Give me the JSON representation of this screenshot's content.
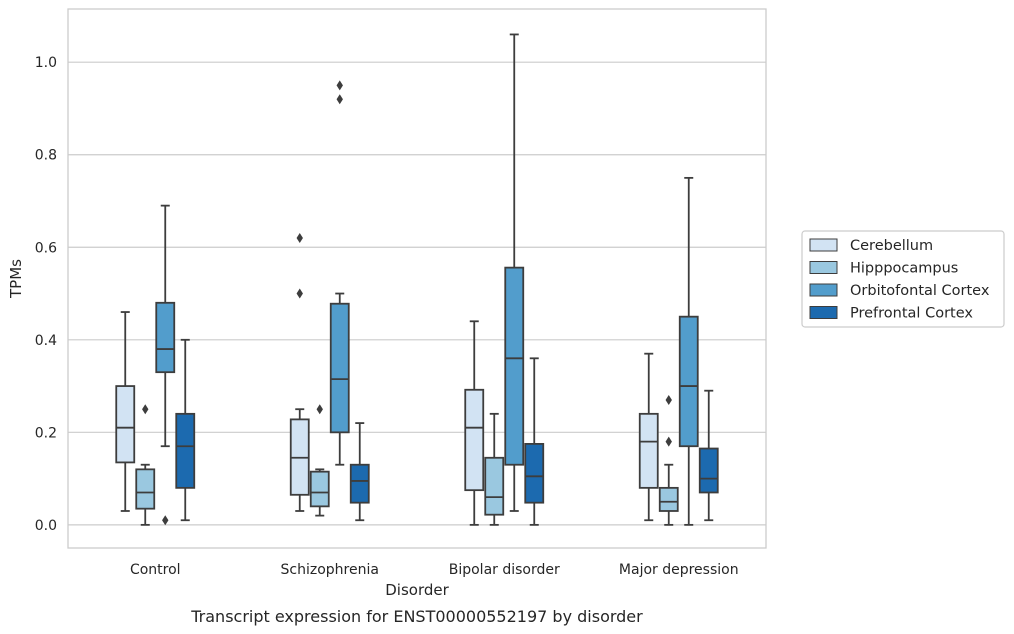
{
  "chart_data": {
    "type": "boxplot",
    "xlabel": "Disorder",
    "ylabel": "TPMs",
    "caption": "Transcript expression for ENST00000552197 by disorder",
    "ylim": [
      -0.05,
      1.115
    ],
    "yticks": [
      0.0,
      0.2,
      0.4,
      0.6,
      0.8,
      1.0
    ],
    "ytick_labels": [
      "0.0",
      "0.2",
      "0.4",
      "0.6",
      "0.8",
      "1.0"
    ],
    "grid": true,
    "legend_position": "right",
    "categories": [
      "Control",
      "Schizophrenia",
      "Bipolar disorder",
      "Major depression"
    ],
    "series": [
      {
        "name": "Cerebellum",
        "color": "#d2e3f3",
        "boxes": [
          {
            "whislo": 0.03,
            "q1": 0.135,
            "med": 0.21,
            "q3": 0.3,
            "whishi": 0.46,
            "fliers": []
          },
          {
            "whislo": 0.03,
            "q1": 0.065,
            "med": 0.145,
            "q3": 0.228,
            "whishi": 0.25,
            "fliers": [
              0.5,
              0.62
            ]
          },
          {
            "whislo": 0.0,
            "q1": 0.075,
            "med": 0.21,
            "q3": 0.292,
            "whishi": 0.44,
            "fliers": []
          },
          {
            "whislo": 0.01,
            "q1": 0.08,
            "med": 0.18,
            "q3": 0.24,
            "whishi": 0.37,
            "fliers": []
          }
        ]
      },
      {
        "name": "Hipppocampus",
        "color": "#9ac8e0",
        "boxes": [
          {
            "whislo": 0.0,
            "q1": 0.035,
            "med": 0.07,
            "q3": 0.12,
            "whishi": 0.13,
            "fliers": [
              0.25
            ]
          },
          {
            "whislo": 0.02,
            "q1": 0.04,
            "med": 0.07,
            "q3": 0.115,
            "whishi": 0.12,
            "fliers": [
              0.25
            ]
          },
          {
            "whislo": 0.0,
            "q1": 0.022,
            "med": 0.06,
            "q3": 0.145,
            "whishi": 0.24,
            "fliers": []
          },
          {
            "whislo": 0.0,
            "q1": 0.03,
            "med": 0.05,
            "q3": 0.08,
            "whishi": 0.13,
            "fliers": [
              0.18,
              0.27
            ]
          }
        ]
      },
      {
        "name": "Orbitofontal Cortex",
        "color": "#529dcc",
        "boxes": [
          {
            "whislo": 0.17,
            "q1": 0.33,
            "med": 0.38,
            "q3": 0.48,
            "whishi": 0.69,
            "fliers": [
              0.01
            ]
          },
          {
            "whislo": 0.13,
            "q1": 0.2,
            "med": 0.315,
            "q3": 0.478,
            "whishi": 0.5,
            "fliers": [
              0.92,
              0.95
            ]
          },
          {
            "whislo": 0.03,
            "q1": 0.13,
            "med": 0.36,
            "q3": 0.556,
            "whishi": 1.06,
            "fliers": []
          },
          {
            "whislo": 0.0,
            "q1": 0.17,
            "med": 0.3,
            "q3": 0.45,
            "whishi": 0.75,
            "fliers": []
          }
        ]
      },
      {
        "name": "Prefrontal Cortex",
        "color": "#1c6aaf",
        "boxes": [
          {
            "whislo": 0.01,
            "q1": 0.08,
            "med": 0.17,
            "q3": 0.24,
            "whishi": 0.4,
            "fliers": []
          },
          {
            "whislo": 0.01,
            "q1": 0.048,
            "med": 0.095,
            "q3": 0.13,
            "whishi": 0.22,
            "fliers": []
          },
          {
            "whislo": 0.0,
            "q1": 0.048,
            "med": 0.105,
            "q3": 0.175,
            "whishi": 0.36,
            "fliers": []
          },
          {
            "whislo": 0.01,
            "q1": 0.07,
            "med": 0.1,
            "q3": 0.165,
            "whishi": 0.29,
            "fliers": []
          }
        ]
      }
    ]
  }
}
